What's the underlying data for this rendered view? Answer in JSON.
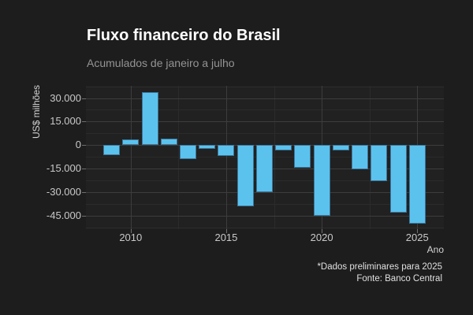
{
  "header": {
    "title": "Fluxo financeiro do Brasil",
    "subtitle": "Acumulados de janeiro a julho"
  },
  "footer": {
    "note": "*Dados preliminares para 2025",
    "source": "Fonte: Banco Central"
  },
  "colors": {
    "background": "#1D1D1D",
    "bar_fill": "#5BC2EE",
    "bar_border": "#3C759A",
    "grid_major": "#3D3D3D",
    "grid_minor": "#2B2B2B",
    "title_text": "#FFFFFF",
    "subtitle_text": "#949494",
    "tick_text": "#C9C9C9",
    "axis_title_text": "#D4D4D4",
    "caption_text": "#E0E0E0"
  },
  "chart_data": {
    "type": "bar",
    "title": "Fluxo financeiro do Brasil",
    "subtitle": "Acumulados de janeiro a julho",
    "xlabel": "Ano",
    "ylabel": "US$ milhões",
    "categories": [
      2009,
      2010,
      2011,
      2012,
      2013,
      2014,
      2015,
      2016,
      2017,
      2018,
      2019,
      2020,
      2021,
      2022,
      2023,
      2024,
      2025
    ],
    "values": [
      -6500,
      3500,
      34000,
      4000,
      -9000,
      -2500,
      -7000,
      -39000,
      -30000,
      -3500,
      -14500,
      -45000,
      -3500,
      -15500,
      -23000,
      -43000,
      -50000
    ],
    "xticks": [
      2010,
      2015,
      2020,
      2025
    ],
    "yticks": [
      30000,
      15000,
      0,
      -15000,
      -30000,
      -45000
    ],
    "ytick_labels": [
      "30.000",
      "15.000",
      "0",
      "-15.000",
      "-30.000",
      "-45.000"
    ],
    "ylim": [
      -53300,
      38000
    ],
    "grid": true,
    "legend": false,
    "caption": [
      "*Dados preliminares para 2025",
      "Fonte: Banco Central"
    ]
  }
}
